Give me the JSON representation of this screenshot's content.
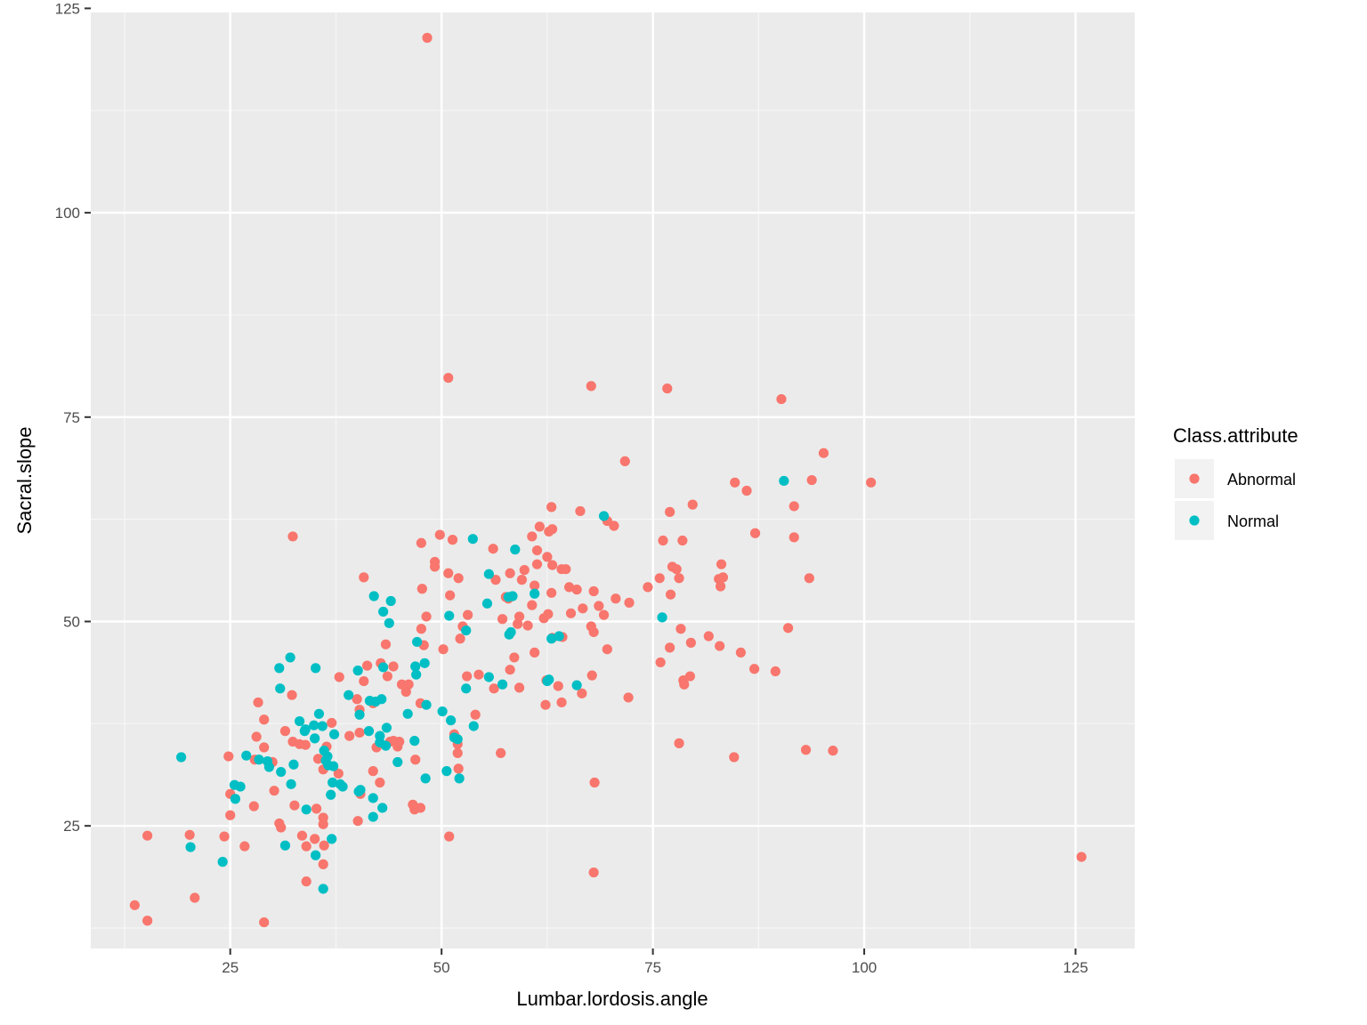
{
  "chart_data": {
    "type": "scatter",
    "xlabel": "Lumbar.lordosis.angle",
    "ylabel": "Sacral.slope",
    "xlim": [
      8.5,
      132
    ],
    "ylim": [
      10,
      124.5
    ],
    "x_ticks": [
      25,
      50,
      75,
      100,
      125
    ],
    "y_ticks": [
      25,
      50,
      75,
      100,
      125
    ],
    "grid": true,
    "legend": {
      "title": "Class.attribute",
      "position": "right"
    },
    "series": [
      {
        "name": "Abnormal",
        "color": "#F8766D",
        "points": [
          [
            48.3,
            121.4
          ],
          [
            50.8,
            79.8
          ],
          [
            67.7,
            78.8
          ],
          [
            76.7,
            78.5
          ],
          [
            90.2,
            77.2
          ],
          [
            71.7,
            69.6
          ],
          [
            95.2,
            70.6
          ],
          [
            100.8,
            67.0
          ],
          [
            93.8,
            67.3
          ],
          [
            84.7,
            67.0
          ],
          [
            86.1,
            66.0
          ],
          [
            91.7,
            64.1
          ],
          [
            79.7,
            64.3
          ],
          [
            77.0,
            63.4
          ],
          [
            66.4,
            63.5
          ],
          [
            63.0,
            64.0
          ],
          [
            69.6,
            62.3
          ],
          [
            70.4,
            61.7
          ],
          [
            91.7,
            60.3
          ],
          [
            87.1,
            60.8
          ],
          [
            78.5,
            59.9
          ],
          [
            76.2,
            59.9
          ],
          [
            61.6,
            61.6
          ],
          [
            63.1,
            61.3
          ],
          [
            62.7,
            61.0
          ],
          [
            60.7,
            60.4
          ],
          [
            49.8,
            60.6
          ],
          [
            51.3,
            60.0
          ],
          [
            47.6,
            59.6
          ],
          [
            32.4,
            60.4
          ],
          [
            56.1,
            58.9
          ],
          [
            61.3,
            58.7
          ],
          [
            62.5,
            57.9
          ],
          [
            63.1,
            56.9
          ],
          [
            64.2,
            56.4
          ],
          [
            64.7,
            56.4
          ],
          [
            61.3,
            57.0
          ],
          [
            59.8,
            56.3
          ],
          [
            58.1,
            55.9
          ],
          [
            49.2,
            56.7
          ],
          [
            50.8,
            55.9
          ],
          [
            52.0,
            55.3
          ],
          [
            56.4,
            55.1
          ],
          [
            59.5,
            55.1
          ],
          [
            83.1,
            57.0
          ],
          [
            77.3,
            56.7
          ],
          [
            77.8,
            56.4
          ],
          [
            82.8,
            55.2
          ],
          [
            83.3,
            55.4
          ],
          [
            75.8,
            55.3
          ],
          [
            78.1,
            55.3
          ],
          [
            93.5,
            55.3
          ],
          [
            40.8,
            55.4
          ],
          [
            65.1,
            54.2
          ],
          [
            66.0,
            53.9
          ],
          [
            70.6,
            52.8
          ],
          [
            72.2,
            52.3
          ],
          [
            74.4,
            54.2
          ],
          [
            83.0,
            54.3
          ],
          [
            77.1,
            53.3
          ],
          [
            68.0,
            53.7
          ],
          [
            63.0,
            53.5
          ],
          [
            57.6,
            53.0
          ],
          [
            51.0,
            53.2
          ],
          [
            47.7,
            54.0
          ],
          [
            60.7,
            52.0
          ],
          [
            68.6,
            51.9
          ],
          [
            62.1,
            50.4
          ],
          [
            59.2,
            50.6
          ],
          [
            57.2,
            50.3
          ],
          [
            53.1,
            50.8
          ],
          [
            48.2,
            50.6
          ],
          [
            62.6,
            50.9
          ],
          [
            65.3,
            51.0
          ],
          [
            69.2,
            50.8
          ],
          [
            61.0,
            54.4
          ],
          [
            47.6,
            49.1
          ],
          [
            52.5,
            49.4
          ],
          [
            59.0,
            49.7
          ],
          [
            60.2,
            49.5
          ],
          [
            67.7,
            49.4
          ],
          [
            68.0,
            48.7
          ],
          [
            78.3,
            49.1
          ],
          [
            81.6,
            48.2
          ],
          [
            91.0,
            49.2
          ],
          [
            64.3,
            48.1
          ],
          [
            52.2,
            47.9
          ],
          [
            63.1,
            48.0
          ],
          [
            69.6,
            46.6
          ],
          [
            77.0,
            46.8
          ],
          [
            82.9,
            47.0
          ],
          [
            79.5,
            47.4
          ],
          [
            85.4,
            46.2
          ],
          [
            61.0,
            46.2
          ],
          [
            50.2,
            46.6
          ],
          [
            47.9,
            47.1
          ],
          [
            43.4,
            47.2
          ],
          [
            58.6,
            45.6
          ],
          [
            75.9,
            45.0
          ],
          [
            87.0,
            44.2
          ],
          [
            89.5,
            43.9
          ],
          [
            79.4,
            43.3
          ],
          [
            78.6,
            42.8
          ],
          [
            78.7,
            42.3
          ],
          [
            67.8,
            43.4
          ],
          [
            66.6,
            41.2
          ],
          [
            58.1,
            44.1
          ],
          [
            54.4,
            43.5
          ],
          [
            53.0,
            43.3
          ],
          [
            62.4,
            42.8
          ],
          [
            63.8,
            42.1
          ],
          [
            56.2,
            41.8
          ],
          [
            59.2,
            41.9
          ],
          [
            45.3,
            42.3
          ],
          [
            46.1,
            42.3
          ],
          [
            43.6,
            43.3
          ],
          [
            44.3,
            44.5
          ],
          [
            41.2,
            44.6
          ],
          [
            42.8,
            44.9
          ],
          [
            37.9,
            43.2
          ],
          [
            45.8,
            41.4
          ],
          [
            40.8,
            42.7
          ],
          [
            40.0,
            40.5
          ],
          [
            41.9,
            40.0
          ],
          [
            47.5,
            40.0
          ],
          [
            64.2,
            40.1
          ],
          [
            62.3,
            39.8
          ],
          [
            72.1,
            40.7
          ],
          [
            54.0,
            38.6
          ],
          [
            28.3,
            40.1
          ],
          [
            32.3,
            41.0
          ],
          [
            29.0,
            38.0
          ],
          [
            31.5,
            36.6
          ],
          [
            37.0,
            37.6
          ],
          [
            40.3,
            36.4
          ],
          [
            39.1,
            36.0
          ],
          [
            42.3,
            34.6
          ],
          [
            44.3,
            35.4
          ],
          [
            44.8,
            34.7
          ],
          [
            43.9,
            35.3
          ],
          [
            45.0,
            35.3
          ],
          [
            51.9,
            35.0
          ],
          [
            51.9,
            33.9
          ],
          [
            57.0,
            33.9
          ],
          [
            51.5,
            36.2
          ],
          [
            32.4,
            35.3
          ],
          [
            33.2,
            35.0
          ],
          [
            33.9,
            34.9
          ],
          [
            36.4,
            34.7
          ],
          [
            29.0,
            34.6
          ],
          [
            24.8,
            33.5
          ],
          [
            27.9,
            33.1
          ],
          [
            28.1,
            35.9
          ],
          [
            30.0,
            32.8
          ],
          [
            35.4,
            33.2
          ],
          [
            46.9,
            33.1
          ],
          [
            42.7,
            30.3
          ],
          [
            36.0,
            31.9
          ],
          [
            37.8,
            31.4
          ],
          [
            41.9,
            31.7
          ],
          [
            52.0,
            32.0
          ],
          [
            32.6,
            27.5
          ],
          [
            30.2,
            29.3
          ],
          [
            25.0,
            28.9
          ],
          [
            27.8,
            27.4
          ],
          [
            35.2,
            27.1
          ],
          [
            36.0,
            26.0
          ],
          [
            40.4,
            28.9
          ],
          [
            46.6,
            27.6
          ],
          [
            46.8,
            27.3
          ],
          [
            47.5,
            27.2
          ],
          [
            46.8,
            27.0
          ],
          [
            40.1,
            25.6
          ],
          [
            36.0,
            25.2
          ],
          [
            31.0,
            24.8
          ],
          [
            30.8,
            25.3
          ],
          [
            25.0,
            26.3
          ],
          [
            68.1,
            30.3
          ],
          [
            78.1,
            35.1
          ],
          [
            84.6,
            33.4
          ],
          [
            93.1,
            34.3
          ],
          [
            96.3,
            34.2
          ],
          [
            125.7,
            21.2
          ],
          [
            68.0,
            19.3
          ],
          [
            50.9,
            23.7
          ],
          [
            35.0,
            23.4
          ],
          [
            33.5,
            23.8
          ],
          [
            36.1,
            22.6
          ],
          [
            34.0,
            22.5
          ],
          [
            26.7,
            22.5
          ],
          [
            20.2,
            23.9
          ],
          [
            24.3,
            23.7
          ],
          [
            15.2,
            23.8
          ],
          [
            34.0,
            18.2
          ],
          [
            36.0,
            20.3
          ],
          [
            20.8,
            16.2
          ],
          [
            13.7,
            15.3
          ],
          [
            15.2,
            13.4
          ],
          [
            29.0,
            13.2
          ],
          [
            40.3,
            39.2
          ],
          [
            49.2,
            57.3
          ],
          [
            57.9,
            52.8
          ],
          [
            66.7,
            51.6
          ]
        ]
      },
      {
        "name": "Normal",
        "color": "#00BFC4",
        "points": [
          [
            90.5,
            67.2
          ],
          [
            69.2,
            62.9
          ],
          [
            53.7,
            60.1
          ],
          [
            58.7,
            58.8
          ],
          [
            55.6,
            55.8
          ],
          [
            61.0,
            53.4
          ],
          [
            57.9,
            53.0
          ],
          [
            58.4,
            53.1
          ],
          [
            55.4,
            52.2
          ],
          [
            42.0,
            53.1
          ],
          [
            44.0,
            52.5
          ],
          [
            43.1,
            51.2
          ],
          [
            43.8,
            49.8
          ],
          [
            50.9,
            50.7
          ],
          [
            52.9,
            48.9
          ],
          [
            58.0,
            48.4
          ],
          [
            58.2,
            48.7
          ],
          [
            63.9,
            48.2
          ],
          [
            63.0,
            47.9
          ],
          [
            47.1,
            47.5
          ],
          [
            76.1,
            50.5
          ],
          [
            32.1,
            45.6
          ],
          [
            30.8,
            44.3
          ],
          [
            35.1,
            44.3
          ],
          [
            40.1,
            44.0
          ],
          [
            43.1,
            44.4
          ],
          [
            46.9,
            44.5
          ],
          [
            47.0,
            43.5
          ],
          [
            48.0,
            44.9
          ],
          [
            55.6,
            43.2
          ],
          [
            57.2,
            42.3
          ],
          [
            62.5,
            42.7
          ],
          [
            62.7,
            42.9
          ],
          [
            66.0,
            42.2
          ],
          [
            30.9,
            41.8
          ],
          [
            39.0,
            41.0
          ],
          [
            42.9,
            40.5
          ],
          [
            42.2,
            40.2
          ],
          [
            41.5,
            40.3
          ],
          [
            48.2,
            39.8
          ],
          [
            50.1,
            39.0
          ],
          [
            52.9,
            41.8
          ],
          [
            46.0,
            38.7
          ],
          [
            40.3,
            38.6
          ],
          [
            35.5,
            38.7
          ],
          [
            33.2,
            37.8
          ],
          [
            34.9,
            37.3
          ],
          [
            35.9,
            37.2
          ],
          [
            33.9,
            36.8
          ],
          [
            33.8,
            36.6
          ],
          [
            37.3,
            36.2
          ],
          [
            41.4,
            36.6
          ],
          [
            43.5,
            37.0
          ],
          [
            42.7,
            36.0
          ],
          [
            42.7,
            35.2
          ],
          [
            43.4,
            34.8
          ],
          [
            46.8,
            35.4
          ],
          [
            51.1,
            37.9
          ],
          [
            53.8,
            37.2
          ],
          [
            51.9,
            35.6
          ],
          [
            51.5,
            35.8
          ],
          [
            35.0,
            35.7
          ],
          [
            36.1,
            34.2
          ],
          [
            36.5,
            33.5
          ],
          [
            44.8,
            32.8
          ],
          [
            19.2,
            33.4
          ],
          [
            26.9,
            33.6
          ],
          [
            28.4,
            33.1
          ],
          [
            29.4,
            32.9
          ],
          [
            29.6,
            32.2
          ],
          [
            31.0,
            31.6
          ],
          [
            32.5,
            32.5
          ],
          [
            36.3,
            33.0
          ],
          [
            36.6,
            32.4
          ],
          [
            37.2,
            32.3
          ],
          [
            48.1,
            30.8
          ],
          [
            50.6,
            31.7
          ],
          [
            52.1,
            30.8
          ],
          [
            25.5,
            30.0
          ],
          [
            26.2,
            29.8
          ],
          [
            32.2,
            30.1
          ],
          [
            37.1,
            30.3
          ],
          [
            38.0,
            30.1
          ],
          [
            36.9,
            28.8
          ],
          [
            40.2,
            29.2
          ],
          [
            40.4,
            29.4
          ],
          [
            41.9,
            28.4
          ],
          [
            25.6,
            28.3
          ],
          [
            34.0,
            27.0
          ],
          [
            43.0,
            27.2
          ],
          [
            41.9,
            26.1
          ],
          [
            31.5,
            22.6
          ],
          [
            20.3,
            22.4
          ],
          [
            35.1,
            21.4
          ],
          [
            24.1,
            20.6
          ],
          [
            36.0,
            17.3
          ],
          [
            37.0,
            23.4
          ],
          [
            38.3,
            29.8
          ]
        ]
      }
    ]
  }
}
